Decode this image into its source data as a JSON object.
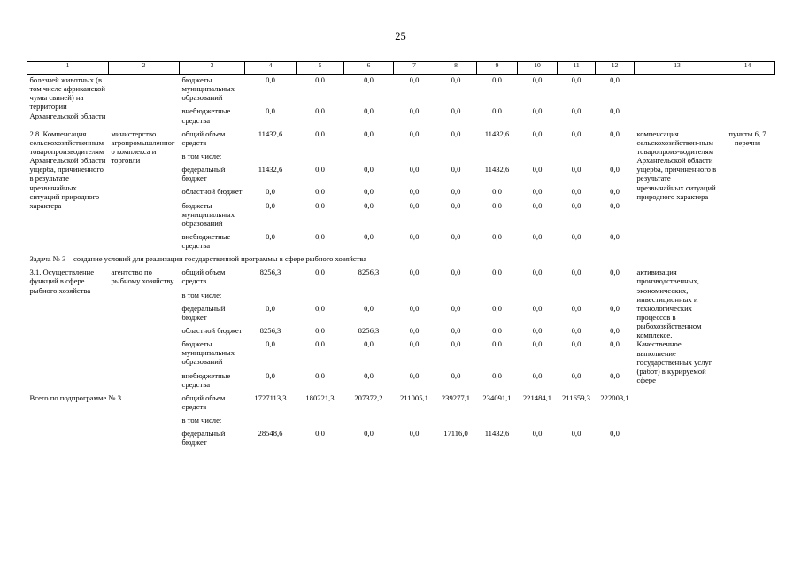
{
  "page": {
    "number": "25"
  },
  "table": {
    "header_cols": [
      "1",
      "2",
      "3",
      "4",
      "5",
      "6",
      "7",
      "8",
      "9",
      "10",
      "11",
      "12",
      "13",
      "14"
    ],
    "rows": [
      {
        "type": "entry",
        "col1": "болезней животных (в том числе африканской чумы свиней) на территории Архангельской области",
        "col2": "",
        "col13": "",
        "col14": "",
        "subrows": [
          {
            "label": "бюджеты муниципальных образований",
            "values": [
              "0,0",
              "0,0",
              "0,0",
              "0,0",
              "0,0",
              "0,0",
              "0,0",
              "0,0",
              "0,0"
            ]
          },
          {
            "label": "внебюджетные средства",
            "values": [
              "0,0",
              "0,0",
              "0,0",
              "0,0",
              "0,0",
              "0,0",
              "0,0",
              "0,0",
              "0,0"
            ]
          }
        ]
      },
      {
        "type": "entry",
        "col1": "2.8. Компенсация сельскохозяйственным товаропроизводителям Архангельской области ущерба, причиненного в результате чрезвычайных ситуаций природного характера",
        "col2": "министерство агропромышленного комплекса и торговли",
        "col13": "компенсация сельскохозяйствен-ным товаропроиз-водителям Архангельской области ущерба, причиненного в результате чрезвычайных ситуаций природного характера",
        "col14": "пункты 6, 7 перечня",
        "subrows": [
          {
            "label": "общий объем средств",
            "values": [
              "11432,6",
              "0,0",
              "0,0",
              "0,0",
              "0,0",
              "11432,6",
              "0,0",
              "0,0",
              "0,0"
            ]
          },
          {
            "label": "в том числе:",
            "values": []
          },
          {
            "label": "федеральный бюджет",
            "values": [
              "11432,6",
              "0,0",
              "0,0",
              "0,0",
              "0,0",
              "11432,6",
              "0,0",
              "0,0",
              "0,0"
            ]
          },
          {
            "label": "областной бюджет",
            "values": [
              "0,0",
              "0,0",
              "0,0",
              "0,0",
              "0,0",
              "0,0",
              "0,0",
              "0,0",
              "0,0"
            ]
          },
          {
            "label": "бюджеты муниципальных образований",
            "values": [
              "0,0",
              "0,0",
              "0,0",
              "0,0",
              "0,0",
              "0,0",
              "0,0",
              "0,0",
              "0,0"
            ]
          },
          {
            "label": "внебюджетные средства",
            "values": [
              "0,0",
              "0,0",
              "0,0",
              "0,0",
              "0,0",
              "0,0",
              "0,0",
              "0,0",
              "0,0"
            ]
          }
        ]
      },
      {
        "type": "section",
        "text": "Задача № 3 – создание условий для реализации государственной программы в сфере рыбного хозяйства"
      },
      {
        "type": "entry",
        "col1": "3.1. Осуществление функций в сфере рыбного хозяйства",
        "col2": "агентство по рыбному хозяйству",
        "col13": "активизация производственных, экономических, инвестиционных и технологических процессов в рыбохозяйственном комплексе. Качественное выполнение государственных услуг (работ) в курируемой сфере",
        "col14": "",
        "subrows": [
          {
            "label": "общий объем средств",
            "values": [
              "8256,3",
              "0,0",
              "8256,3",
              "0,0",
              "0,0",
              "0,0",
              "0,0",
              "0,0",
              "0,0"
            ]
          },
          {
            "label": "в том числе:",
            "values": []
          },
          {
            "label": "федеральный бюджет",
            "values": [
              "0,0",
              "0,0",
              "0,0",
              "0,0",
              "0,0",
              "0,0",
              "0,0",
              "0,0",
              "0,0"
            ]
          },
          {
            "label": "областной бюджет",
            "values": [
              "8256,3",
              "0,0",
              "8256,3",
              "0,0",
              "0,0",
              "0,0",
              "0,0",
              "0,0",
              "0,0"
            ]
          },
          {
            "label": "бюджеты муниципальных образований",
            "values": [
              "0,0",
              "0,0",
              "0,0",
              "0,0",
              "0,0",
              "0,0",
              "0,0",
              "0,0",
              "0,0"
            ]
          },
          {
            "label": "внебюджетные средства",
            "values": [
              "0,0",
              "0,0",
              "0,0",
              "0,0",
              "0,0",
              "0,0",
              "0,0",
              "0,0",
              "0,0"
            ]
          }
        ]
      },
      {
        "type": "entry",
        "col1": "Всего по подпрограмме № 3",
        "col1_span2": true,
        "col2": "",
        "col13": "",
        "col14": "",
        "subrows": [
          {
            "label": "общий объем средств",
            "values": [
              "1727113,3",
              "180221,3",
              "207372,2",
              "211005,1",
              "239277,1",
              "234091,1",
              "221484,1",
              "211659,3",
              "222003,1"
            ]
          },
          {
            "label": "в том числе:",
            "values": []
          },
          {
            "label": "федеральный бюджет",
            "values": [
              "28548,6",
              "0,0",
              "0,0",
              "0,0",
              "17116,0",
              "11432,6",
              "0,0",
              "0,0",
              "0,0"
            ]
          }
        ]
      }
    ]
  }
}
